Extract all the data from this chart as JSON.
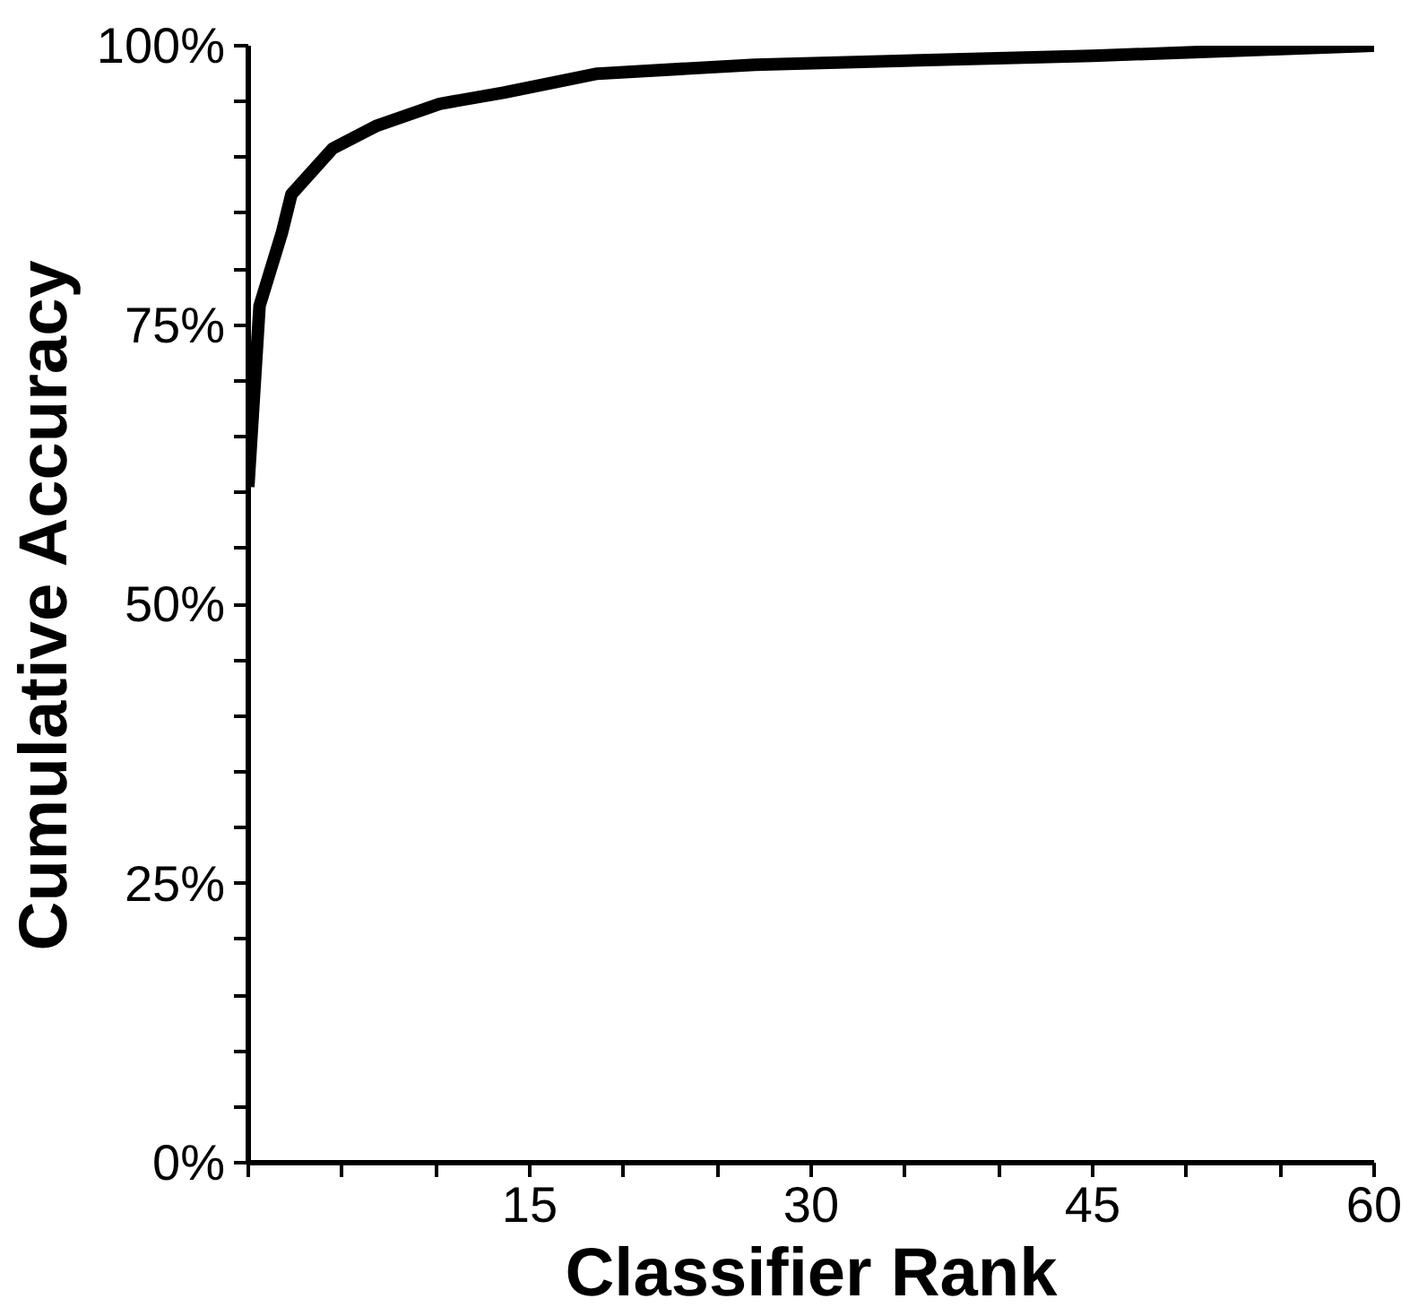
{
  "chart_data": {
    "type": "line",
    "xlabel": "Classifier Rank",
    "ylabel": "Cumulative Accuracy",
    "x": [
      0,
      0.6,
      1.8,
      2.3,
      4.5,
      6.8,
      10.2,
      13.6,
      18.6,
      27,
      45,
      60
    ],
    "series": [
      {
        "color": "#000000",
        "values": [
          60.5,
          76.7,
          83.3,
          86.7,
          90.8,
          92.8,
          94.8,
          95.8,
          97.5,
          98.3,
          99.1,
          100
        ]
      }
    ],
    "xlim": [
      0,
      60
    ],
    "ylim": [
      0,
      100
    ],
    "xticks": [
      {
        "value": 0,
        "label": null
      },
      {
        "value": 5,
        "label": null
      },
      {
        "value": 10,
        "label": null
      },
      15,
      {
        "value": 20,
        "label": null
      },
      {
        "value": 25,
        "label": null
      },
      30,
      {
        "value": 35,
        "label": null
      },
      {
        "value": 40,
        "label": null
      },
      45,
      {
        "value": 50,
        "label": null
      },
      {
        "value": 55,
        "label": null
      },
      60
    ],
    "yticks": [
      {
        "value": 0,
        "label": "0%"
      },
      {
        "value": 5,
        "label": null
      },
      {
        "value": 10,
        "label": null
      },
      {
        "value": 15,
        "label": null
      },
      {
        "value": 20,
        "label": null
      },
      {
        "value": 25,
        "label": "25%"
      },
      {
        "value": 30,
        "label": null
      },
      {
        "value": 35,
        "label": null
      },
      {
        "value": 40,
        "label": null
      },
      {
        "value": 45,
        "label": null
      },
      {
        "value": 50,
        "label": "50%"
      },
      {
        "value": 55,
        "label": null
      },
      {
        "value": 60,
        "label": null
      },
      {
        "value": 65,
        "label": null
      },
      {
        "value": 70,
        "label": null
      },
      {
        "value": 75,
        "label": "75%"
      },
      {
        "value": 80,
        "label": null
      },
      {
        "value": 85,
        "label": null
      },
      {
        "value": 90,
        "label": null
      },
      {
        "value": 95,
        "label": null
      },
      {
        "value": 100,
        "label": "100%"
      }
    ],
    "grid": false,
    "marker": "none",
    "line_style": "solid"
  }
}
